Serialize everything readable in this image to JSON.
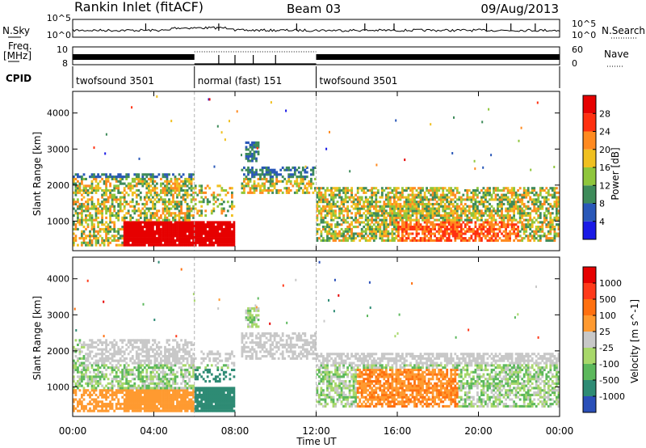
{
  "header": {
    "station": "Rankin Inlet (fitACF)",
    "beam": "Beam 03",
    "date": "09/Aug/2013"
  },
  "strip_labels": {
    "nsky": "N.Sky",
    "nsearch": "N.Search",
    "freq": "Freq.",
    "mhz": "[MHz]",
    "nave": "Nave",
    "cpid": "CPID"
  },
  "strip_ticks": {
    "noise_left_top": "10^5",
    "noise_left_bottom": "10^0",
    "noise_right_top": "10^5",
    "noise_right_bottom": "10^0",
    "freq_left_top": "10",
    "freq_left_bottom": "8",
    "nave_right_top": "60",
    "nave_right_bottom": "0"
  },
  "cpid": [
    {
      "label": "twofsound 3501",
      "start_h": 0,
      "end_h": 6
    },
    {
      "label": "normal (fast) 151",
      "start_h": 6,
      "end_h": 12
    },
    {
      "label": "twofsound 3501",
      "start_h": 12,
      "end_h": 24
    }
  ],
  "axes": {
    "xlabel": "Time UT",
    "ylabel": "Slant Range [km]",
    "xticks": [
      "00:00",
      "04:00",
      "08:00",
      "12:00",
      "16:00",
      "20:00",
      "00:00"
    ],
    "yticks": [
      "1000",
      "2000",
      "3000",
      "4000"
    ]
  },
  "chart_data": [
    {
      "type": "heatmap",
      "title": "",
      "xlabel": "Time UT",
      "ylabel": "Slant Range [km]",
      "xlim": [
        0,
        24
      ],
      "ylim": [
        180,
        4600
      ],
      "colorbar": {
        "label": "Power [dB]",
        "ticks": [
          "4",
          "8",
          "12",
          "16",
          "20",
          "24",
          "28"
        ],
        "colors": [
          "#1a1ae6",
          "#2a58b8",
          "#3e8b5a",
          "#8fc63c",
          "#f0c020",
          "#ff8a20",
          "#ff3010",
          "#e60000"
        ]
      },
      "features": [
        {
          "t_start": 0,
          "t_end": 6,
          "r_low": 300,
          "r_high": 2300,
          "level": "medium"
        },
        {
          "t_start": 2.5,
          "t_end": 8,
          "r_low": 250,
          "r_high": 1000,
          "level": "high"
        },
        {
          "t_start": 8.5,
          "t_end": 12,
          "r_low": 1600,
          "r_high": 2500,
          "level": "low"
        },
        {
          "t_start": 12,
          "t_end": 24,
          "r_low": 500,
          "r_high": 1800,
          "level": "medium"
        }
      ]
    },
    {
      "type": "heatmap",
      "title": "",
      "xlabel": "Time UT",
      "ylabel": "Slant Range [km]",
      "xlim": [
        0,
        24
      ],
      "ylim": [
        180,
        4600
      ],
      "colorbar": {
        "label": "Velocity [m s^-1]",
        "ticks": [
          "1000",
          "500",
          "100",
          "25",
          "-25",
          "-100",
          "-500",
          "-1000"
        ],
        "colors": [
          "#2a4fb8",
          "#2e8b74",
          "#5cb85c",
          "#a8d86a",
          "#c8c8c8",
          "#ff9a30",
          "#ff7010",
          "#ff3a1a",
          "#e60000"
        ]
      }
    }
  ],
  "colors": {
    "gridline": "#b0b0b0",
    "axis": "#000000"
  }
}
